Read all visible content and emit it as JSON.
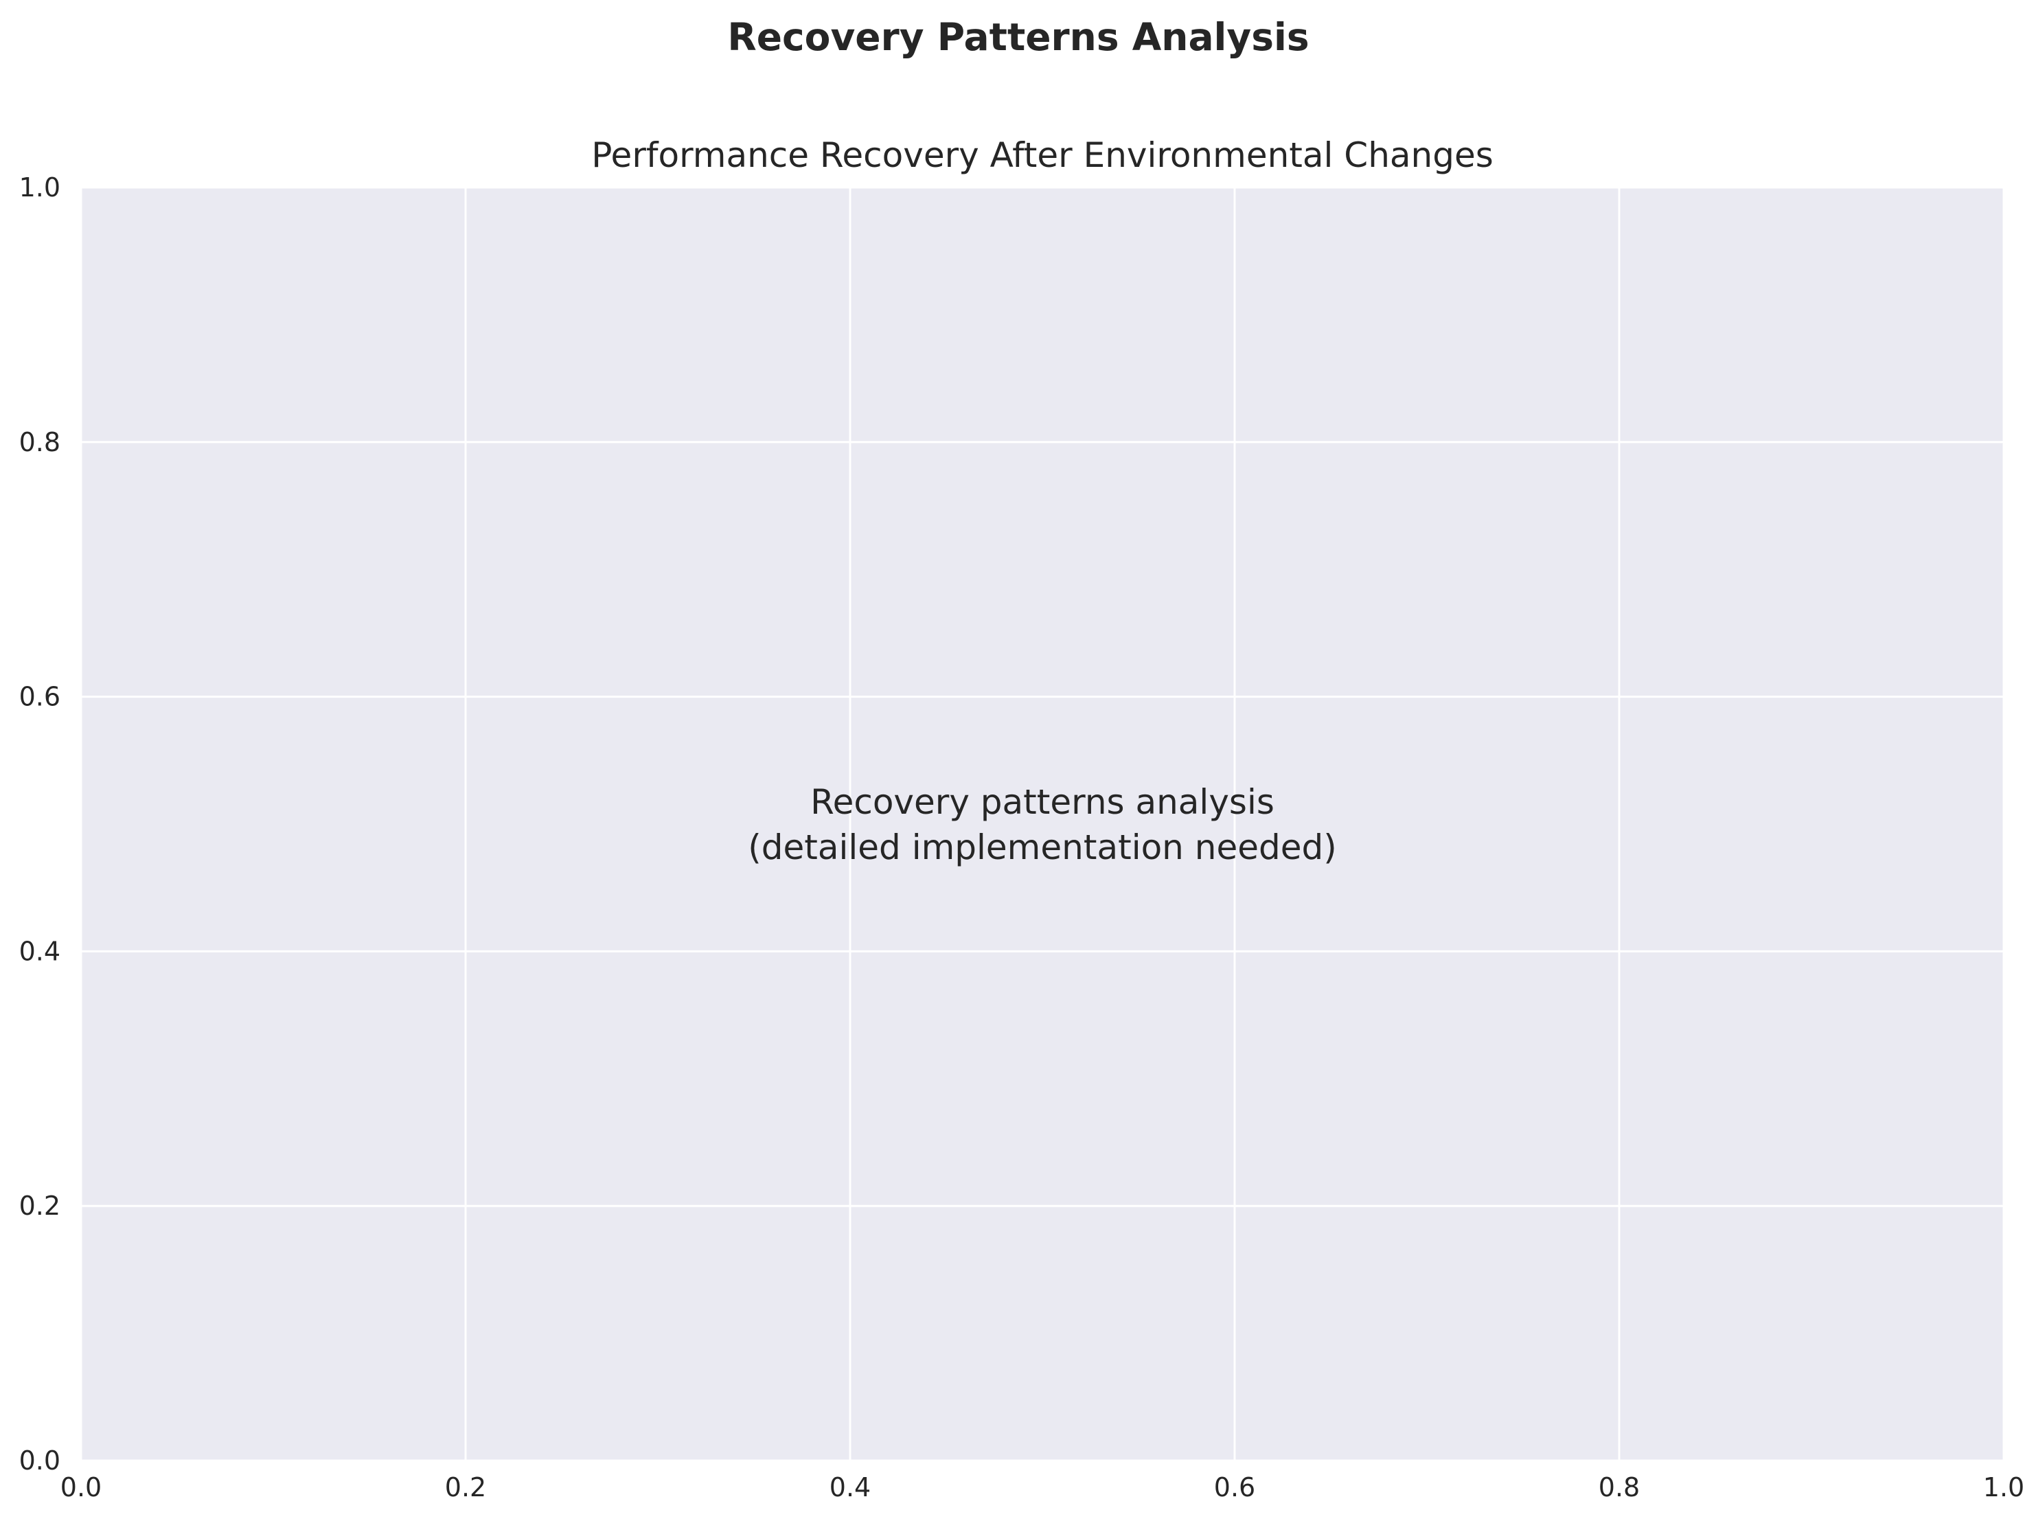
{
  "chart_data": {
    "type": "line",
    "suptitle": "Recovery Patterns Analysis",
    "title": "Performance Recovery After Environmental Changes",
    "xlabel": "",
    "ylabel": "",
    "xlim": [
      0.0,
      1.0
    ],
    "ylim": [
      0.0,
      1.0
    ],
    "x_ticks": [
      0.0,
      0.2,
      0.4,
      0.6,
      0.8,
      1.0
    ],
    "y_ticks": [
      0.0,
      0.2,
      0.4,
      0.6,
      0.8,
      1.0
    ],
    "x_tick_labels": [
      "0.0",
      "0.2",
      "0.4",
      "0.6",
      "0.8",
      "1.0"
    ],
    "y_tick_labels": [
      "0.0",
      "0.2",
      "0.4",
      "0.6",
      "0.8",
      "1.0"
    ],
    "grid": true,
    "series": [],
    "annotation": {
      "lines": [
        "Recovery patterns analysis",
        "(detailed implementation needed)"
      ],
      "x": 0.5,
      "y": 0.5
    },
    "colors": {
      "axes_background": "#eaeaf2",
      "grid": "#ffffff",
      "text": "#262626"
    }
  }
}
